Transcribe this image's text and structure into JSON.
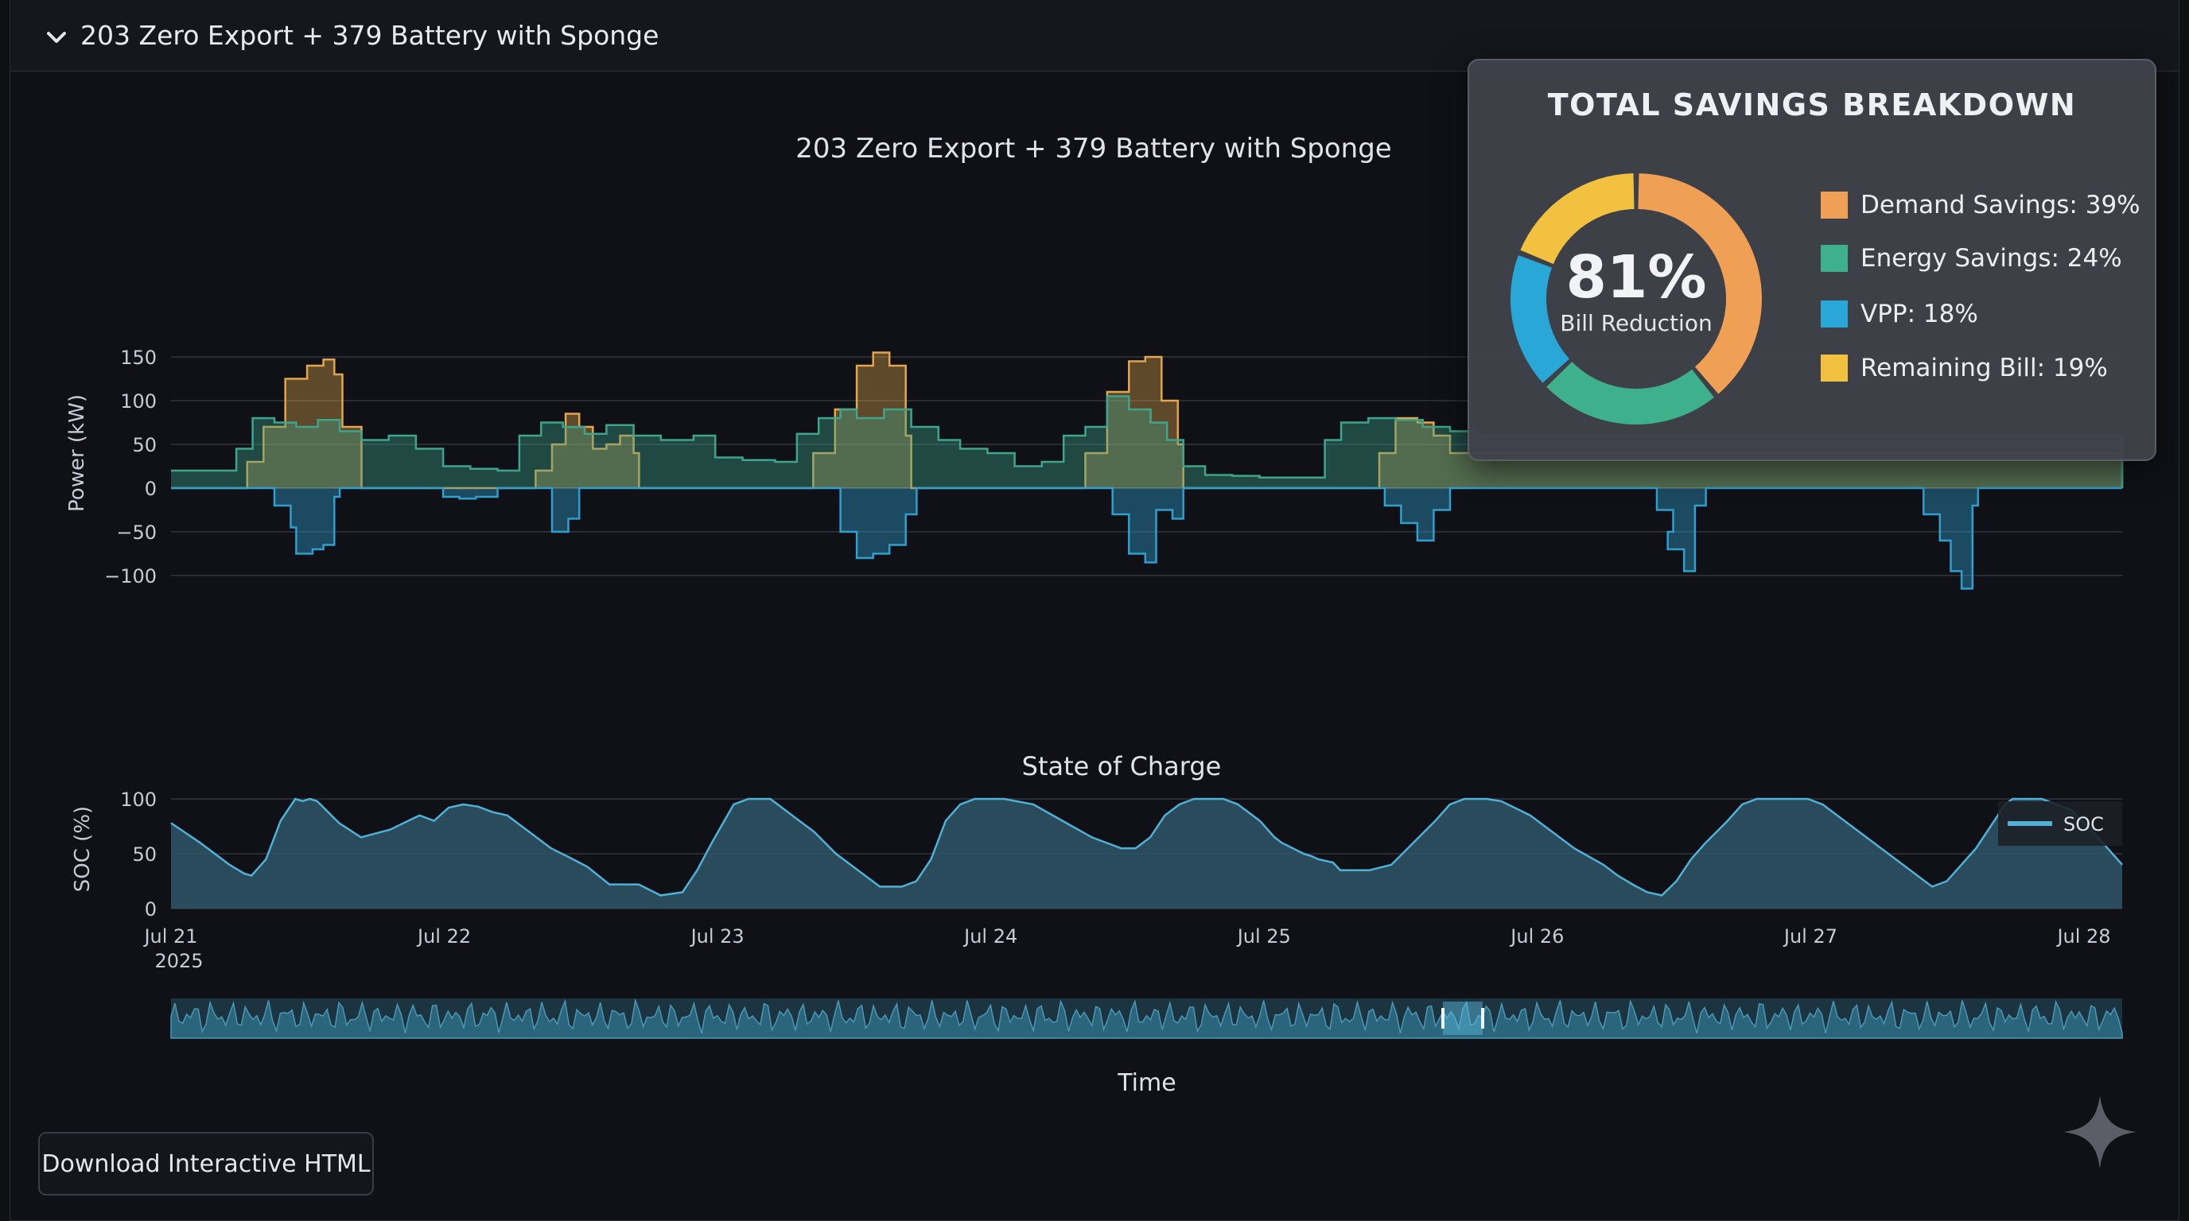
{
  "header": {
    "title": "203 Zero Export + 379 Battery with Sponge"
  },
  "download_label": "Download Interactive HTML",
  "icons": {
    "collapse": "chevron-down-icon",
    "assistant": "sparkle-icon"
  },
  "savings": {
    "title": "TOTAL SAVINGS BREAKDOWN",
    "center_value": "81%",
    "center_label": "Bill Reduction",
    "items": [
      {
        "label": "Demand Savings: 39%",
        "value": 39,
        "color": "#f0a055"
      },
      {
        "label": "Energy Savings: 24%",
        "value": 24,
        "color": "#3fb08c"
      },
      {
        "label": "VPP: 18%",
        "value": 18,
        "color": "#29a8d8"
      },
      {
        "label": "Remaining Bill: 19%",
        "value": 19,
        "color": "#f2c140"
      }
    ]
  },
  "chart_data": [
    {
      "type": "line",
      "title": "203 Zero Export + 379 Battery with Sponge",
      "xlabel": "",
      "ylabel": "Power (kW)",
      "ylim": [
        -120,
        160
      ],
      "yticks": [
        150,
        100,
        50,
        0,
        -50,
        -100
      ],
      "ytick_labels": [
        "150",
        "100",
        "50",
        "0",
        "−50",
        "−100"
      ],
      "xlim": [
        0,
        7.17
      ],
      "grid": true,
      "colors": {
        "load": "#e3a54d",
        "solar": "#3ea58c",
        "battery": "#2f9fd0"
      },
      "series": [
        {
          "kind": "load",
          "points": [
            [
              0.0,
              0
            ],
            [
              0.22,
              0
            ],
            [
              0.28,
              30
            ],
            [
              0.34,
              70
            ],
            [
              0.42,
              125
            ],
            [
              0.5,
              140
            ],
            [
              0.56,
              147
            ],
            [
              0.6,
              130
            ],
            [
              0.63,
              70
            ],
            [
              0.68,
              70
            ],
            [
              0.7,
              0
            ],
            [
              1.3,
              0
            ],
            [
              1.34,
              20
            ],
            [
              1.4,
              50
            ],
            [
              1.45,
              85
            ],
            [
              1.5,
              70
            ],
            [
              1.55,
              45
            ],
            [
              1.6,
              50
            ],
            [
              1.65,
              60
            ],
            [
              1.7,
              40
            ],
            [
              1.72,
              0
            ],
            [
              2.3,
              0
            ],
            [
              2.36,
              40
            ],
            [
              2.44,
              90
            ],
            [
              2.52,
              140
            ],
            [
              2.58,
              155
            ],
            [
              2.64,
              140
            ],
            [
              2.7,
              60
            ],
            [
              2.72,
              0
            ],
            [
              3.3,
              0
            ],
            [
              3.36,
              40
            ],
            [
              3.44,
              110
            ],
            [
              3.52,
              145
            ],
            [
              3.58,
              150
            ],
            [
              3.64,
              100
            ],
            [
              3.7,
              50
            ],
            [
              3.72,
              0
            ],
            [
              4.4,
              0
            ],
            [
              4.44,
              40
            ],
            [
              4.5,
              80
            ],
            [
              4.58,
              75
            ],
            [
              4.64,
              60
            ],
            [
              4.7,
              40
            ],
            [
              7.17,
              0
            ]
          ]
        },
        {
          "kind": "solar",
          "points": [
            [
              0.0,
              20
            ],
            [
              0.2,
              20
            ],
            [
              0.24,
              45
            ],
            [
              0.3,
              80
            ],
            [
              0.38,
              75
            ],
            [
              0.46,
              70
            ],
            [
              0.54,
              78
            ],
            [
              0.62,
              65
            ],
            [
              0.7,
              55
            ],
            [
              0.8,
              60
            ],
            [
              0.9,
              45
            ],
            [
              1.0,
              25
            ],
            [
              1.1,
              22
            ],
            [
              1.2,
              20
            ],
            [
              1.28,
              60
            ],
            [
              1.36,
              75
            ],
            [
              1.44,
              70
            ],
            [
              1.52,
              62
            ],
            [
              1.6,
              72
            ],
            [
              1.7,
              60
            ],
            [
              1.8,
              55
            ],
            [
              1.92,
              60
            ],
            [
              2.0,
              35
            ],
            [
              2.1,
              32
            ],
            [
              2.22,
              30
            ],
            [
              2.3,
              62
            ],
            [
              2.38,
              80
            ],
            [
              2.46,
              90
            ],
            [
              2.52,
              80
            ],
            [
              2.62,
              90
            ],
            [
              2.72,
              70
            ],
            [
              2.82,
              55
            ],
            [
              2.9,
              45
            ],
            [
              3.0,
              40
            ],
            [
              3.1,
              25
            ],
            [
              3.2,
              30
            ],
            [
              3.28,
              60
            ],
            [
              3.36,
              70
            ],
            [
              3.44,
              105
            ],
            [
              3.52,
              90
            ],
            [
              3.6,
              75
            ],
            [
              3.66,
              55
            ],
            [
              3.72,
              25
            ],
            [
              3.8,
              15
            ],
            [
              3.9,
              14
            ],
            [
              4.0,
              12
            ],
            [
              4.1,
              12
            ],
            [
              4.18,
              12
            ],
            [
              4.24,
              55
            ],
            [
              4.3,
              75
            ],
            [
              4.4,
              80
            ],
            [
              4.5,
              78
            ],
            [
              4.6,
              70
            ],
            [
              4.7,
              65
            ],
            [
              4.8,
              60
            ],
            [
              7.17,
              0
            ]
          ]
        },
        {
          "kind": "battery",
          "points": [
            [
              0.0,
              0
            ],
            [
              0.35,
              0
            ],
            [
              0.38,
              -20
            ],
            [
              0.44,
              -45
            ],
            [
              0.46,
              -75
            ],
            [
              0.52,
              -70
            ],
            [
              0.56,
              -65
            ],
            [
              0.6,
              -10
            ],
            [
              0.62,
              0
            ],
            [
              0.95,
              0
            ],
            [
              1.0,
              -10
            ],
            [
              1.06,
              -12
            ],
            [
              1.12,
              -10
            ],
            [
              1.2,
              0
            ],
            [
              1.36,
              0
            ],
            [
              1.4,
              -50
            ],
            [
              1.46,
              -35
            ],
            [
              1.5,
              0
            ],
            [
              2.4,
              0
            ],
            [
              2.46,
              -50
            ],
            [
              2.52,
              -80
            ],
            [
              2.58,
              -75
            ],
            [
              2.64,
              -65
            ],
            [
              2.7,
              -30
            ],
            [
              2.74,
              0
            ],
            [
              3.4,
              0
            ],
            [
              3.46,
              -30
            ],
            [
              3.52,
              -75
            ],
            [
              3.58,
              -85
            ],
            [
              3.62,
              -25
            ],
            [
              3.68,
              -35
            ],
            [
              3.72,
              0
            ],
            [
              4.4,
              0
            ],
            [
              4.46,
              -20
            ],
            [
              4.52,
              -40
            ],
            [
              4.58,
              -60
            ],
            [
              4.64,
              -25
            ],
            [
              4.7,
              0
            ],
            [
              5.4,
              0
            ],
            [
              5.46,
              -25
            ],
            [
              5.52,
              -50
            ],
            [
              5.5,
              -70
            ],
            [
              5.56,
              -95
            ],
            [
              5.6,
              -20
            ],
            [
              5.64,
              0
            ],
            [
              6.4,
              0
            ],
            [
              6.44,
              -30
            ],
            [
              6.5,
              -60
            ],
            [
              6.54,
              -95
            ],
            [
              6.58,
              -115
            ],
            [
              6.62,
              -20
            ],
            [
              6.64,
              0
            ],
            [
              7.17,
              0
            ]
          ]
        }
      ]
    },
    {
      "type": "area",
      "title": "State of Charge",
      "ylabel": "SOC (%)",
      "xlabel": "Time",
      "ylim": [
        0,
        100
      ],
      "yticks": [
        100,
        50,
        0
      ],
      "xtick_labels": [
        "Jul 21",
        "Jul 22",
        "Jul 23",
        "Jul 24",
        "Jul 25",
        "Jul 26",
        "Jul 27",
        "Jul 28"
      ],
      "xtick_positions": [
        0,
        1,
        2,
        3,
        4,
        5,
        6,
        7
      ],
      "year_label": "2025",
      "legend_position": "top-right",
      "grid": true,
      "series": [
        {
          "name": "SOC",
          "color": "#4fb1d6",
          "points": [
            [
              0,
              78
            ],
            [
              0.2,
              60
            ],
            [
              0.4,
              40
            ],
            [
              0.5,
              32
            ],
            [
              0.55,
              30
            ],
            [
              0.65,
              45
            ],
            [
              0.75,
              80
            ],
            [
              0.85,
              100
            ],
            [
              0.9,
              98
            ],
            [
              0.95,
              100
            ],
            [
              1.0,
              98
            ],
            [
              1.15,
              78
            ],
            [
              1.3,
              65
            ],
            [
              1.5,
              72
            ],
            [
              1.7,
              85
            ],
            [
              1.8,
              80
            ],
            [
              1.9,
              92
            ],
            [
              2.0,
              95
            ],
            [
              2.1,
              93
            ],
            [
              2.2,
              88
            ],
            [
              2.3,
              85
            ],
            [
              2.45,
              70
            ],
            [
              2.6,
              55
            ],
            [
              2.75,
              45
            ],
            [
              2.85,
              38
            ],
            [
              3.0,
              22
            ],
            [
              3.2,
              22
            ],
            [
              3.35,
              12
            ],
            [
              3.5,
              15
            ],
            [
              3.6,
              35
            ],
            [
              3.7,
              60
            ],
            [
              3.85,
              95
            ],
            [
              3.95,
              100
            ],
            [
              4.1,
              100
            ],
            [
              4.25,
              85
            ],
            [
              4.4,
              70
            ],
            [
              4.55,
              50
            ],
            [
              4.7,
              35
            ],
            [
              4.85,
              20
            ],
            [
              5.0,
              20
            ],
            [
              5.1,
              25
            ],
            [
              5.2,
              45
            ],
            [
              5.3,
              80
            ],
            [
              5.4,
              95
            ],
            [
              5.5,
              100
            ],
            [
              5.7,
              100
            ],
            [
              5.9,
              95
            ],
            [
              6.1,
              80
            ],
            [
              6.3,
              65
            ],
            [
              6.5,
              55
            ],
            [
              6.6,
              55
            ],
            [
              6.7,
              65
            ],
            [
              6.8,
              85
            ],
            [
              6.9,
              95
            ],
            [
              7.0,
              100
            ],
            [
              7.2,
              100
            ],
            [
              7.3,
              95
            ],
            [
              7.45,
              80
            ],
            [
              7.55,
              65
            ],
            [
              7.6,
              60
            ],
            [
              7.75,
              50
            ],
            [
              7.8,
              48
            ],
            [
              7.85,
              45
            ],
            [
              7.95,
              42
            ],
            [
              8.0,
              35
            ],
            [
              8.2,
              35
            ],
            [
              8.35,
              40
            ],
            [
              8.5,
              60
            ],
            [
              8.65,
              80
            ],
            [
              8.75,
              95
            ],
            [
              8.85,
              100
            ],
            [
              9.0,
              100
            ],
            [
              9.1,
              98
            ],
            [
              9.3,
              85
            ],
            [
              9.45,
              70
            ],
            [
              9.6,
              55
            ],
            [
              9.8,
              40
            ],
            [
              9.9,
              30
            ],
            [
              10.0,
              22
            ],
            [
              10.1,
              15
            ],
            [
              10.2,
              12
            ],
            [
              10.3,
              25
            ],
            [
              10.4,
              45
            ],
            [
              10.5,
              60
            ],
            [
              10.65,
              80
            ],
            [
              10.75,
              95
            ],
            [
              10.85,
              100
            ],
            [
              11.0,
              100
            ],
            [
              11.2,
              100
            ],
            [
              11.3,
              95
            ],
            [
              11.45,
              80
            ],
            [
              11.6,
              65
            ],
            [
              11.75,
              50
            ],
            [
              11.9,
              35
            ],
            [
              12.0,
              25
            ],
            [
              12.05,
              20
            ],
            [
              12.15,
              25
            ],
            [
              12.25,
              40
            ],
            [
              12.35,
              55
            ],
            [
              12.45,
              75
            ],
            [
              12.55,
              95
            ],
            [
              12.6,
              100
            ],
            [
              12.8,
              100
            ],
            [
              13.0,
              90
            ],
            [
              13.15,
              70
            ],
            [
              13.25,
              55
            ],
            [
              13.35,
              40
            ]
          ]
        }
      ]
    }
  ]
}
